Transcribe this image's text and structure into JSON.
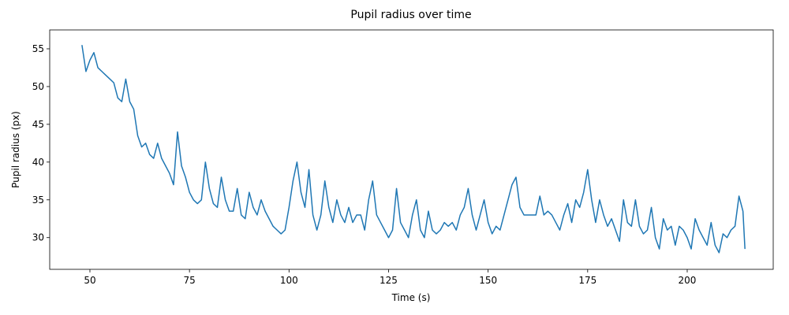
{
  "chart_data": {
    "type": "line",
    "title": "Pupil radius over time",
    "xlabel": "Time (s)",
    "ylabel": "Pupil radius (px)",
    "x": [
      48,
      49,
      50,
      51,
      52,
      53,
      54,
      55,
      56,
      57,
      58,
      59,
      60,
      61,
      62,
      63,
      64,
      65,
      66,
      67,
      68,
      69,
      70,
      71,
      72,
      73,
      74,
      75,
      76,
      77,
      78,
      79,
      80,
      81,
      82,
      83,
      84,
      85,
      86,
      87,
      88,
      89,
      90,
      91,
      92,
      93,
      94,
      95,
      96,
      97,
      98,
      99,
      100,
      101,
      102,
      103,
      104,
      105,
      106,
      107,
      108,
      109,
      110,
      111,
      112,
      113,
      114,
      115,
      116,
      117,
      118,
      119,
      120,
      121,
      122,
      123,
      124,
      125,
      126,
      127,
      128,
      129,
      130,
      131,
      132,
      133,
      134,
      135,
      136,
      137,
      138,
      139,
      140,
      141,
      142,
      143,
      144,
      145,
      146,
      147,
      148,
      149,
      150,
      151,
      152,
      153,
      154,
      155,
      156,
      157,
      158,
      159,
      160,
      161,
      162,
      163,
      164,
      165,
      166,
      167,
      168,
      169,
      170,
      171,
      172,
      173,
      174,
      175,
      176,
      177,
      178,
      179,
      180,
      181,
      182,
      183,
      184,
      185,
      186,
      187,
      188,
      189,
      190,
      191,
      192,
      193,
      194,
      195,
      196,
      197,
      198,
      199,
      200,
      201,
      202,
      203,
      204,
      205,
      206,
      207,
      208,
      209,
      210,
      211,
      212,
      213,
      214,
      214.5
    ],
    "series": [
      {
        "color": "#1f77b4",
        "values": [
          55.5,
          52,
          53.5,
          54.5,
          52.5,
          52,
          51.5,
          51,
          50.5,
          48.5,
          48,
          51,
          48,
          47,
          43.5,
          42,
          42.5,
          41,
          40.5,
          42.5,
          40.5,
          39.5,
          38.5,
          37,
          44,
          39.5,
          38,
          36,
          35,
          34.5,
          35,
          40,
          36.5,
          34.5,
          34,
          38,
          35,
          33.5,
          33.5,
          36.5,
          33,
          32.5,
          36,
          34,
          33,
          35,
          33.5,
          32.5,
          31.5,
          31,
          30.5,
          31,
          34,
          37.5,
          40,
          36,
          34,
          39,
          33,
          31,
          33,
          37.5,
          34,
          32,
          35,
          33,
          32,
          34,
          32,
          33,
          33,
          31,
          35,
          37.5,
          33,
          32,
          31,
          30,
          31,
          36.5,
          32,
          31,
          30,
          33,
          35,
          31,
          30,
          33.5,
          31,
          30.5,
          31,
          32,
          31.5,
          32,
          31,
          33,
          34,
          36.5,
          33,
          31,
          33,
          35,
          32,
          30.5,
          31.5,
          31,
          33,
          35,
          37,
          38,
          34,
          33,
          33,
          33,
          33,
          35.5,
          33,
          33.5,
          33,
          32,
          31,
          33,
          34.5,
          32,
          35,
          34,
          36,
          39,
          35,
          32,
          35,
          33,
          31.5,
          32.5,
          31,
          29.5,
          35,
          32,
          31.5,
          35,
          31.5,
          30.5,
          31,
          34,
          30,
          28.5,
          32.5,
          31,
          31.5,
          29,
          31.5,
          31,
          30,
          28.5,
          32.5,
          31,
          30,
          29,
          32,
          29,
          28,
          30.5,
          30,
          31,
          31.5,
          35.5,
          33.5,
          28.5
        ]
      }
    ],
    "xlim": [
      39.9,
      221.6
    ],
    "ylim": [
      25.8,
      57.5
    ],
    "xticks": [
      50,
      75,
      100,
      125,
      150,
      175,
      200
    ],
    "yticks": [
      30,
      35,
      40,
      45,
      50,
      55
    ],
    "grid": false
  }
}
